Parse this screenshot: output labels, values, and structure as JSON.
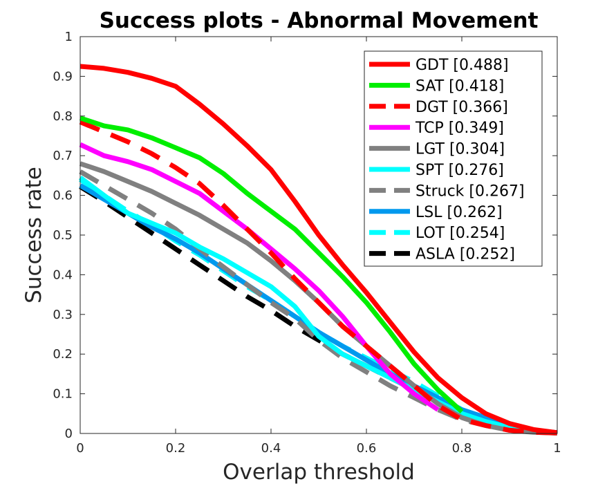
{
  "chart_data": {
    "type": "line",
    "title": "Success plots - Abnormal Movement",
    "xlabel": "Overlap threshold",
    "ylabel": "Success rate",
    "xlim": [
      0,
      1
    ],
    "ylim": [
      0,
      1
    ],
    "xticks": [
      "0",
      "0.2",
      "0.4",
      "0.6",
      "0.8",
      "1"
    ],
    "yticks": [
      "0",
      "0.1",
      "0.2",
      "0.3",
      "0.4",
      "0.5",
      "0.6",
      "0.7",
      "0.8",
      "0.9",
      "1"
    ],
    "legend_position": "top-right",
    "x": [
      0,
      0.05,
      0.1,
      0.15,
      0.2,
      0.25,
      0.3,
      0.35,
      0.4,
      0.45,
      0.5,
      0.55,
      0.6,
      0.65,
      0.7,
      0.75,
      0.8,
      0.85,
      0.9,
      0.95,
      1
    ],
    "series": [
      {
        "name": "GDT",
        "score": "[0.488]",
        "color": "#ff0000",
        "dash": "solid",
        "values": [
          0.925,
          0.92,
          0.91,
          0.895,
          0.875,
          0.83,
          0.78,
          0.725,
          0.665,
          0.585,
          0.5,
          0.425,
          0.355,
          0.28,
          0.205,
          0.14,
          0.09,
          0.05,
          0.025,
          0.01,
          0.002
        ]
      },
      {
        "name": "SAT",
        "score": "[0.418]",
        "color": "#00ee00",
        "dash": "solid",
        "values": [
          0.795,
          0.775,
          0.765,
          0.745,
          0.72,
          0.695,
          0.655,
          0.605,
          0.56,
          0.515,
          0.455,
          0.395,
          0.33,
          0.255,
          0.175,
          0.11,
          0.055,
          null,
          null,
          null,
          null
        ]
      },
      {
        "name": "DGT",
        "score": "[0.366]",
        "color": "#ff0000",
        "dash": "dashed",
        "values": [
          0.785,
          0.76,
          0.735,
          0.705,
          0.67,
          0.63,
          0.575,
          0.515,
          0.455,
          0.39,
          0.33,
          0.27,
          0.22,
          0.17,
          0.12,
          0.07,
          0.035,
          0.02,
          0.008,
          0.003,
          0.001
        ]
      },
      {
        "name": "TCP",
        "score": "[0.349]",
        "color": "#ff00ff",
        "dash": "solid",
        "values": [
          0.728,
          0.7,
          0.685,
          0.665,
          0.635,
          0.605,
          0.56,
          0.515,
          0.465,
          0.415,
          0.36,
          0.295,
          0.22,
          0.15,
          0.1,
          0.06,
          null,
          null,
          null,
          null,
          null
        ]
      },
      {
        "name": "LGT",
        "score": "[0.304]",
        "color": "#808080",
        "dash": "solid",
        "values": [
          0.68,
          0.66,
          0.635,
          0.61,
          0.58,
          0.55,
          0.515,
          0.48,
          0.435,
          0.385,
          0.33,
          0.27,
          0.22,
          0.17,
          0.12,
          0.075,
          0.04,
          0.02,
          0.008,
          0.003,
          0.001
        ]
      },
      {
        "name": "SPT",
        "score": "[0.276]",
        "color": "#00ffff",
        "dash": "solid",
        "values": [
          0.645,
          0.6,
          0.555,
          0.53,
          0.505,
          0.47,
          0.44,
          0.405,
          0.37,
          0.32,
          0.245,
          0.2,
          0.17,
          0.14,
          0.11,
          0.08,
          0.05,
          0.03,
          0.015,
          0.005,
          0.001
        ]
      },
      {
        "name": "Struck",
        "score": "[0.267]",
        "color": "#808080",
        "dash": "dashed",
        "values": [
          0.66,
          0.625,
          0.59,
          0.555,
          0.515,
          0.465,
          0.42,
          0.375,
          0.33,
          0.29,
          0.235,
          0.19,
          0.155,
          0.12,
          0.09,
          0.06,
          0.035,
          0.02,
          0.01,
          0.005,
          0.001
        ]
      },
      {
        "name": "LSL",
        "score": "[0.262]",
        "color": "#0099ee",
        "dash": "solid",
        "values": [
          0.625,
          0.59,
          0.555,
          0.52,
          0.49,
          0.455,
          0.415,
          0.375,
          0.335,
          0.295,
          0.255,
          0.22,
          0.185,
          0.15,
          0.12,
          0.09,
          0.06,
          0.04,
          0.02,
          0.008,
          0.002
        ]
      },
      {
        "name": "LOT",
        "score": "[0.254]",
        "color": "#00ffff",
        "dash": "dashed",
        "values": [
          0.64,
          0.6,
          0.56,
          0.525,
          0.485,
          0.45,
          0.41,
          0.37,
          0.335,
          0.295,
          0.255,
          0.22,
          0.19,
          0.16,
          0.13,
          0.095,
          0.06,
          0.03,
          0.012,
          0.004,
          0.001
        ]
      },
      {
        "name": "ASLA",
        "score": "[0.252]",
        "color": "#000000",
        "dash": "dashed",
        "values": [
          0.622,
          0.585,
          0.545,
          0.505,
          0.465,
          0.425,
          0.385,
          0.345,
          0.31,
          0.27,
          0.235,
          0.2,
          0.17,
          0.14,
          0.11,
          0.08,
          0.055,
          0.035,
          0.02,
          0.008,
          0.002
        ]
      }
    ]
  }
}
